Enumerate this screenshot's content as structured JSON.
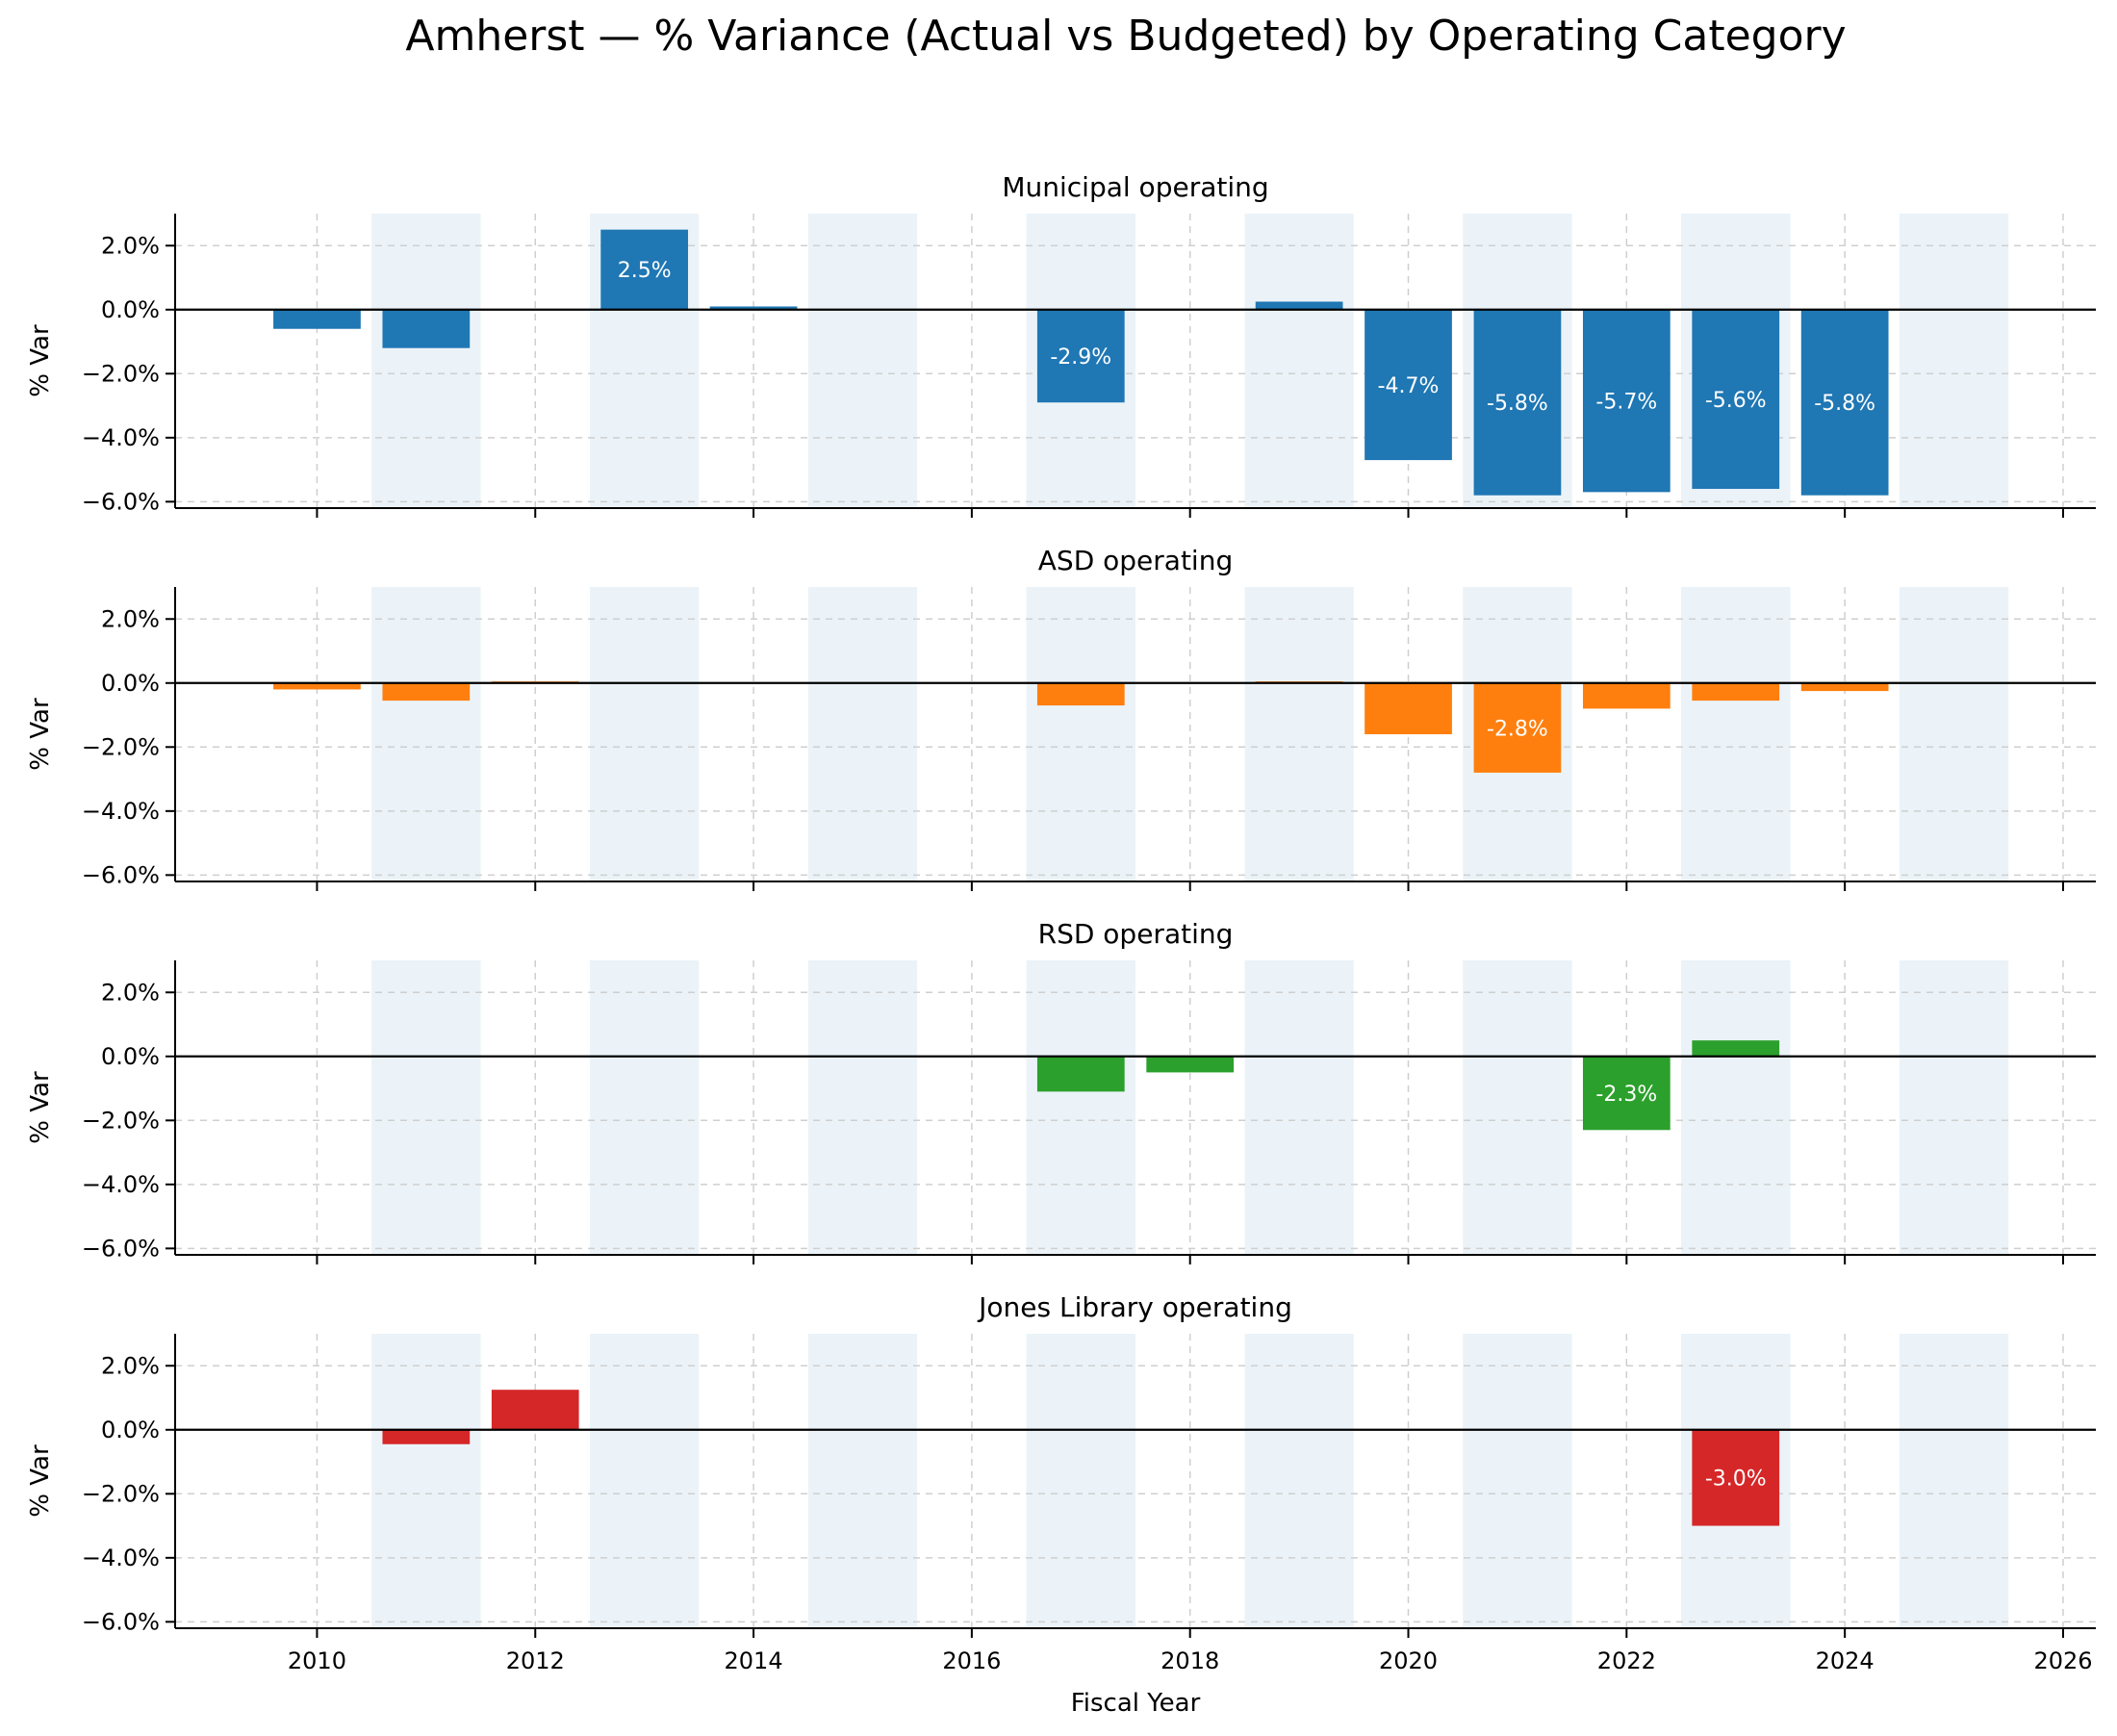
{
  "title": "Amherst — % Variance (Actual vs Budgeted) by Operating Category",
  "xlabel": "Fiscal Year",
  "ylabel": "% Var",
  "chart_data": {
    "type": "bar",
    "title": "Amherst — % Variance (Actual vs Budgeted) by Operating Category",
    "xlabel": "Fiscal Year",
    "ylabel": "% Var",
    "xlim": [
      2008.7,
      2026.3
    ],
    "ylim": [
      -6.2,
      3.0
    ],
    "x_ticks": [
      2010,
      2012,
      2014,
      2016,
      2018,
      2020,
      2022,
      2024,
      2026
    ],
    "y_ticks": [
      2.0,
      0.0,
      -2.0,
      -4.0,
      -6.0
    ],
    "y_tick_labels": [
      "2.0%",
      "0.0%",
      "−2.0%",
      "−4.0%",
      "−6.0%"
    ],
    "shaded_years": [
      2011,
      2013,
      2015,
      2017,
      2019,
      2021,
      2023,
      2025
    ],
    "grid": true,
    "panels": [
      {
        "name": "Municipal operating",
        "color": "#1f77b4",
        "x": [
          2010,
          2011,
          2013,
          2014,
          2017,
          2019,
          2020,
          2021,
          2022,
          2023,
          2024
        ],
        "values": [
          -0.6,
          -1.2,
          2.5,
          0.1,
          -2.9,
          0.25,
          -4.7,
          -5.8,
          -5.7,
          -5.6,
          -5.8
        ],
        "labels": [
          "",
          "",
          "2.5%",
          "",
          "-2.9%",
          "",
          "-4.7%",
          "-5.8%",
          "-5.7%",
          "-5.6%",
          "-5.8%"
        ]
      },
      {
        "name": "ASD operating",
        "color": "#ff7f0e",
        "x": [
          2010,
          2011,
          2012,
          2017,
          2019,
          2020,
          2021,
          2022,
          2023,
          2024
        ],
        "values": [
          -0.2,
          -0.55,
          0.05,
          -0.7,
          0.05,
          -1.6,
          -2.8,
          -0.8,
          -0.55,
          -0.25
        ],
        "labels": [
          "",
          "",
          "",
          "",
          "",
          "",
          "-2.8%",
          "",
          "",
          ""
        ]
      },
      {
        "name": "RSD operating",
        "color": "#2ca02c",
        "x": [
          2017,
          2018,
          2022,
          2023
        ],
        "values": [
          -1.1,
          -0.5,
          -2.3,
          0.5
        ],
        "labels": [
          "",
          "",
          "-2.3%",
          ""
        ]
      },
      {
        "name": "Jones Library operating",
        "color": "#d62728",
        "x": [
          2011,
          2012,
          2023
        ],
        "values": [
          -0.45,
          1.25,
          -3.0
        ],
        "labels": [
          "",
          "",
          "-3.0%"
        ]
      }
    ]
  }
}
